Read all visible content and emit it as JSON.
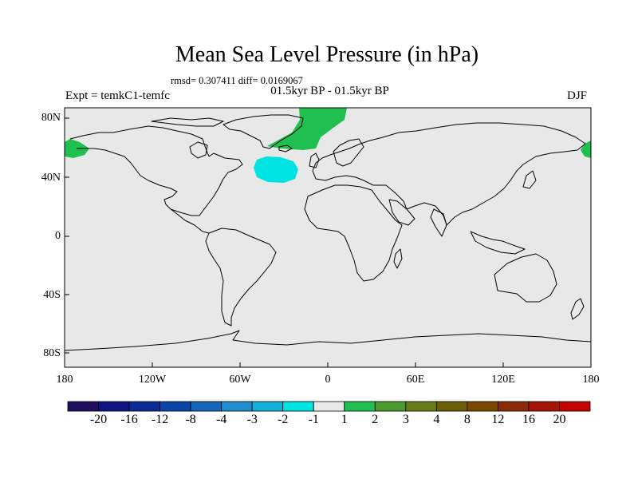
{
  "title": "Mean Sea Level Pressure (in hPa)",
  "stats": "rmsd= 0.307411 diff= 0.0169067",
  "period": "01.5kyr BP - 01.5kyr BP",
  "experiment": "Expt = temkC1-temfc",
  "season": "DJF",
  "lat_labels": [
    "80N",
    "40N",
    "0",
    "40S",
    "80S"
  ],
  "lon_labels": [
    "180",
    "120W",
    "60W",
    "0",
    "60E",
    "120E",
    "180"
  ],
  "colorbar": {
    "colors": [
      "#1f0f5e",
      "#0f1480",
      "#0c2a96",
      "#0a45a8",
      "#1565bd",
      "#1f8ccc",
      "#13b0dc",
      "#00e3e3",
      "#e8e8e8",
      "#20c050",
      "#4a9a2c",
      "#667d19",
      "#6b5e06",
      "#7a4900",
      "#8b2c08",
      "#a51505",
      "#c40000"
    ],
    "labels": [
      "-20",
      "-16",
      "-12",
      "-8",
      "-4",
      "-3",
      "-2",
      "-1",
      "1",
      "2",
      "3",
      "4",
      "8",
      "12",
      "16",
      "20"
    ]
  },
  "map_colors": {
    "background": "#e8e8e8",
    "positive": "#20c050",
    "negative": "#00e3e3",
    "coast": "#000000"
  }
}
